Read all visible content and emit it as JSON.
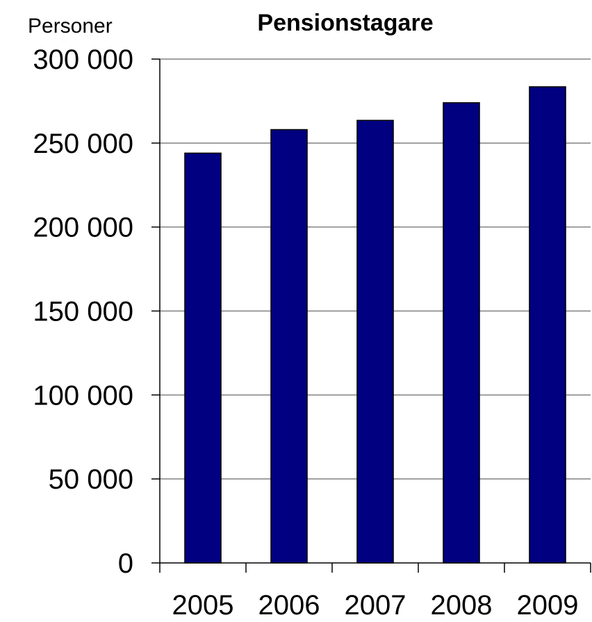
{
  "chart_data": {
    "type": "bar",
    "title": "Pensionstagare",
    "ylabel": "Personer",
    "xlabel": "",
    "categories": [
      "2005",
      "2006",
      "2007",
      "2008",
      "2009"
    ],
    "values": [
      244000,
      258000,
      263500,
      274000,
      283500
    ],
    "ylim": [
      0,
      300000
    ],
    "yticks": [
      0,
      50000,
      100000,
      150000,
      200000,
      250000,
      300000
    ],
    "ytick_labels": [
      "0",
      "50 000",
      "100 000",
      "150 000",
      "200 000",
      "250 000",
      "300 000"
    ],
    "grid": true,
    "legend": "none",
    "colors": {
      "bar": "#000080",
      "grid": "#808080"
    }
  }
}
